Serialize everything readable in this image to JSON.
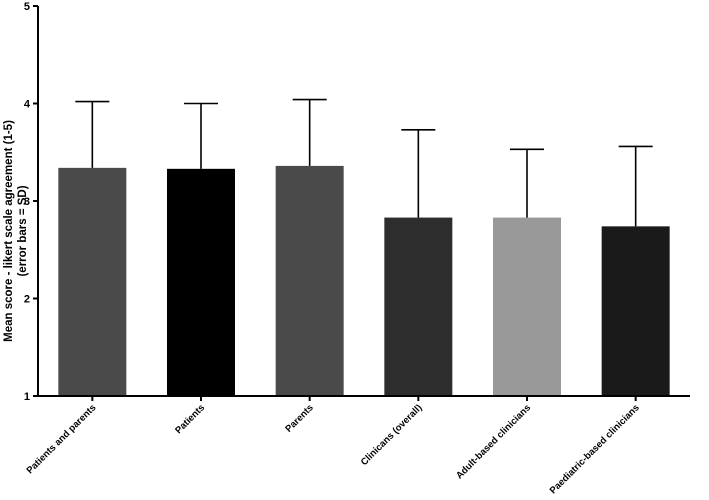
{
  "chart_data": {
    "type": "bar",
    "categories": [
      "Patients and parents",
      "Patients",
      "Parents",
      "Clinicans (overall)",
      "Adult-based clinicians",
      "Paediatric-based clinicians"
    ],
    "values": [
      3.34,
      3.33,
      3.36,
      2.83,
      2.83,
      2.74
    ],
    "error_sd": [
      0.68,
      0.67,
      0.68,
      0.9,
      0.7,
      0.82
    ],
    "bar_colors": [
      "#4a4a4a",
      "#000000",
      "#4a4a4a",
      "#2d2d2d",
      "#999999",
      "#1a1a1a"
    ],
    "ylabel_lines": [
      "Mean score - likert scale agreement (1-5)",
      "(error bars = SD)"
    ],
    "ylim": [
      1,
      5
    ],
    "yticks": [
      1,
      2,
      3,
      4,
      5
    ],
    "grid": false,
    "legend": "none"
  }
}
